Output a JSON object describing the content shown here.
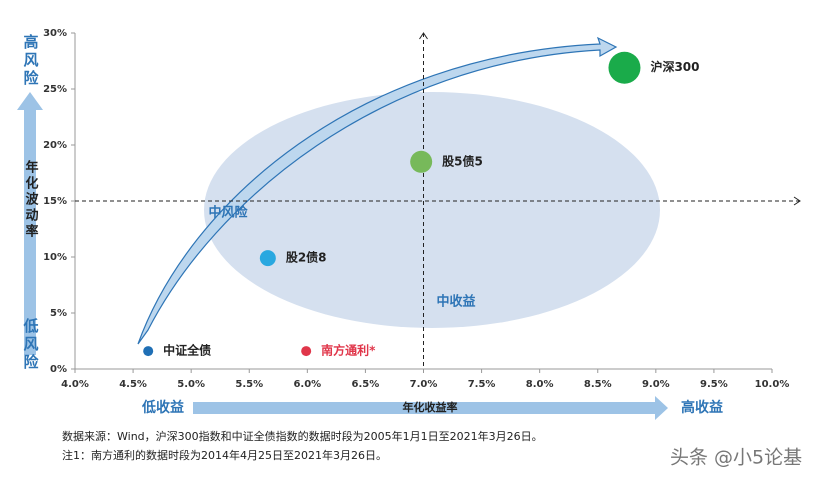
{
  "chart_data": {
    "type": "scatter",
    "xlabel": "年化收益率",
    "ylabel": "年化波动率",
    "xlim": [
      4.0,
      10.0
    ],
    "ylim": [
      0,
      30
    ],
    "xticks": [
      {
        "value": 4.0,
        "label": "4.0%"
      },
      {
        "value": 4.5,
        "label": "4.5%"
      },
      {
        "value": 5.0,
        "label": "5.0%"
      },
      {
        "value": 5.5,
        "label": "5.5%"
      },
      {
        "value": 6.0,
        "label": "6.0%"
      },
      {
        "value": 6.5,
        "label": "6.5%"
      },
      {
        "value": 7.0,
        "label": "7.0%"
      },
      {
        "value": 7.5,
        "label": "7.5%"
      },
      {
        "value": 8.0,
        "label": "8.0%"
      },
      {
        "value": 8.5,
        "label": "8.5%"
      },
      {
        "value": 9.0,
        "label": "9.0%"
      },
      {
        "value": 9.5,
        "label": "9.5%"
      },
      {
        "value": 10.0,
        "label": "10.0%"
      }
    ],
    "yticks": [
      {
        "value": 0,
        "label": "0%"
      },
      {
        "value": 5,
        "label": "5%"
      },
      {
        "value": 10,
        "label": "10%"
      },
      {
        "value": 15,
        "label": "15%"
      },
      {
        "value": 20,
        "label": "20%"
      },
      {
        "value": 25,
        "label": "25%"
      },
      {
        "value": 30,
        "label": "30%"
      }
    ],
    "series": [
      {
        "name": "中证全债",
        "color": "#1f6fb5",
        "marker_size": 5,
        "x": [
          4.63
        ],
        "values": [
          1.6
        ]
      },
      {
        "name": "南方通利*",
        "color": "#e0364a",
        "marker_size": 5,
        "x": [
          5.99
        ],
        "values": [
          1.6
        ]
      },
      {
        "name": "股2债8",
        "color": "#29a8e0",
        "marker_size": 8,
        "x": [
          5.66
        ],
        "values": [
          9.9
        ]
      },
      {
        "name": "股5债5",
        "color": "#77b95a",
        "marker_size": 11,
        "x": [
          6.98
        ],
        "values": [
          18.5
        ]
      },
      {
        "name": "沪深300",
        "color": "#1aab4a",
        "marker_size": 16,
        "x": [
          8.73
        ],
        "values": [
          26.9
        ]
      }
    ],
    "reference_lines": {
      "x": 7.0,
      "y": 15
    },
    "annotations": {
      "high_risk": "高风险",
      "low_risk": "低风险",
      "low_return": "低收益",
      "high_return": "高收益",
      "mid_risk": "中风险",
      "mid_return": "中收益"
    },
    "notes": [
      "数据来源：Wind，沪深300指数和中证全债指数的数据时段为2005年1月1日至2021年3月26日。",
      "注1：南方通利的数据时段为2014年4月25日至2021年3月26日。"
    ],
    "watermark": "头条 @小5论基"
  }
}
